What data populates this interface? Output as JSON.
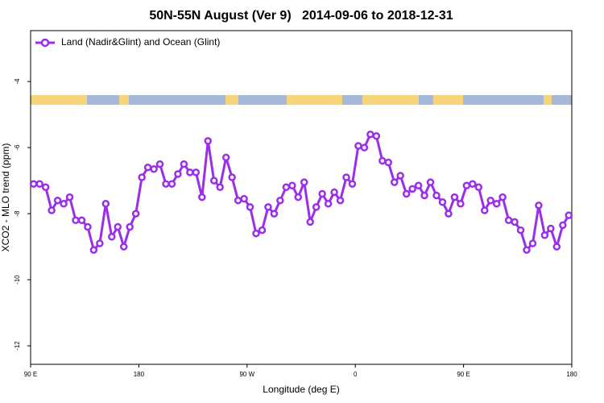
{
  "chart_data": {
    "type": "line",
    "title": "50N-55N August (Ver 9)   2014-09-06 to 2018-12-31",
    "xlabel": "Longitude (deg E)",
    "ylabel": "XCO2 - MLO trend (ppm)",
    "x": [
      92.5,
      97.5,
      102.5,
      107.5,
      112.5,
      117.5,
      122.5,
      127.5,
      132.5,
      137.5,
      142.5,
      147.5,
      152.5,
      157.5,
      162.5,
      167.5,
      172.5,
      177.5,
      182.5,
      187.5,
      192.5,
      197.5,
      202.5,
      207.5,
      212.5,
      217.5,
      222.5,
      227.5,
      232.5,
      237.5,
      242.5,
      247.5,
      252.5,
      257.5,
      262.5,
      267.5,
      272.5,
      277.5,
      282.5,
      287.5,
      292.5,
      297.5,
      302.5,
      307.5,
      312.5,
      317.5,
      322.5,
      327.5,
      332.5,
      337.5,
      342.5,
      347.5,
      352.5,
      357.5,
      362.5,
      367.5,
      372.5,
      377.5,
      382.5,
      387.5,
      392.5,
      397.5,
      402.5,
      407.5,
      412.5,
      417.5,
      422.5,
      427.5,
      432.5,
      437.5,
      442.5,
      447.5,
      452.5,
      457.5,
      462.5,
      467.5,
      472.5,
      477.5,
      482.5,
      487.5,
      492.5,
      497.5,
      502.5,
      507.5,
      512.5,
      517.5,
      522.5,
      527.5,
      532.5,
      537.5
    ],
    "series": [
      {
        "name": "Land (Nadir&Glint) and Ocean (Glint)",
        "color": "#9b2ee8",
        "values": [
          -7.1,
          -7.1,
          -7.2,
          -7.9,
          -7.6,
          -7.7,
          -7.5,
          -8.2,
          -8.2,
          -8.4,
          -9.1,
          -8.9,
          -7.7,
          -8.7,
          -8.4,
          -9.0,
          -8.4,
          -8.0,
          -6.9,
          -6.6,
          -6.65,
          -6.5,
          -7.1,
          -7.1,
          -6.8,
          -6.5,
          -6.75,
          -6.75,
          -7.5,
          -5.8,
          -7.0,
          -7.2,
          -6.3,
          -6.9,
          -7.6,
          -7.55,
          -7.8,
          -8.6,
          -8.5,
          -7.8,
          -8.0,
          -7.6,
          -7.2,
          -7.15,
          -7.5,
          -7.05,
          -8.25,
          -7.8,
          -7.4,
          -7.7,
          -7.35,
          -7.6,
          -6.9,
          -7.1,
          -5.95,
          -6.0,
          -5.6,
          -5.65,
          -6.4,
          -6.45,
          -7.05,
          -6.85,
          -7.4,
          -7.25,
          -7.15,
          -7.45,
          -7.05,
          -7.45,
          -7.65,
          -8.0,
          -7.5,
          -7.7,
          -7.15,
          -7.1,
          -7.2,
          -7.9,
          -7.6,
          -7.7,
          -7.5,
          -8.2,
          -8.25,
          -8.5,
          -9.1,
          -8.9,
          -7.75,
          -8.65,
          -8.45,
          -9.0,
          -8.35,
          -8.05
        ]
      }
    ],
    "xlim": [
      90,
      540
    ],
    "xticks": [
      {
        "value": 90,
        "label": "90 E"
      },
      {
        "value": 180,
        "label": "180"
      },
      {
        "value": 270,
        "label": "90 W"
      },
      {
        "value": 360,
        "label": "0"
      },
      {
        "value": 450,
        "label": "90 E"
      },
      {
        "value": 540,
        "label": "180"
      }
    ],
    "ylim": [
      -12.56,
      -2.46
    ],
    "yticks": [
      -4,
      -6,
      -8,
      -10,
      -12
    ],
    "legend": "top-left"
  }
}
